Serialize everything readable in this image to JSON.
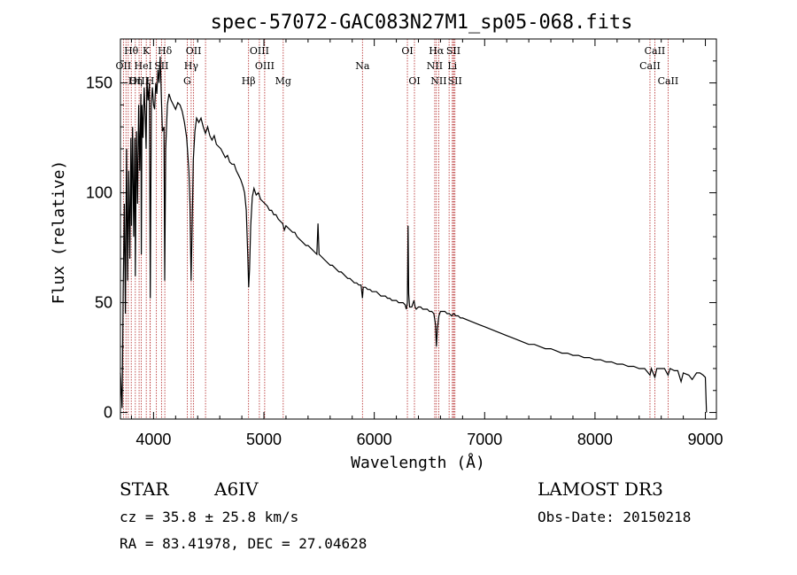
{
  "chart_data": {
    "type": "line",
    "title": "spec-57072-GAC083N27M1_sp05-068.fits",
    "xlabel": "Wavelength (Å)",
    "ylabel": "Flux (relative)",
    "xlim": [
      3700,
      9100
    ],
    "ylim": [
      -3,
      170
    ],
    "x_ticks": [
      4000,
      5000,
      6000,
      7000,
      8000,
      9000
    ],
    "y_ticks": [
      0,
      50,
      100,
      150
    ],
    "series": [
      {
        "name": "spectrum",
        "points": [
          [
            3700,
            18
          ],
          [
            3715,
            2
          ],
          [
            3725,
            55
          ],
          [
            3735,
            95
          ],
          [
            3745,
            45
          ],
          [
            3755,
            120
          ],
          [
            3765,
            60
          ],
          [
            3775,
            110
          ],
          [
            3785,
            70
          ],
          [
            3795,
            125
          ],
          [
            3800,
            85
          ],
          [
            3810,
            130
          ],
          [
            3820,
            80
          ],
          [
            3830,
            125
          ],
          [
            3835,
            62
          ],
          [
            3845,
            128
          ],
          [
            3855,
            95
          ],
          [
            3865,
            140
          ],
          [
            3875,
            110
          ],
          [
            3885,
            145
          ],
          [
            3889,
            72
          ],
          [
            3895,
            140
          ],
          [
            3905,
            125
          ],
          [
            3915,
            148
          ],
          [
            3925,
            135
          ],
          [
            3933,
            120
          ],
          [
            3940,
            152
          ],
          [
            3950,
            142
          ],
          [
            3962,
            150
          ],
          [
            3970,
            52
          ],
          [
            3980,
            140
          ],
          [
            3990,
            148
          ],
          [
            4000,
            140
          ],
          [
            4010,
            138
          ],
          [
            4020,
            150
          ],
          [
            4030,
            145
          ],
          [
            4040,
            156
          ],
          [
            4050,
            150
          ],
          [
            4060,
            162
          ],
          [
            4070,
            145
          ],
          [
            4080,
            128
          ],
          [
            4095,
            130
          ],
          [
            4101,
            60
          ],
          [
            4110,
            120
          ],
          [
            4125,
            140
          ],
          [
            4140,
            145
          ],
          [
            4160,
            142
          ],
          [
            4180,
            140
          ],
          [
            4200,
            138
          ],
          [
            4220,
            141
          ],
          [
            4240,
            140
          ],
          [
            4260,
            137
          ],
          [
            4280,
            132
          ],
          [
            4300,
            125
          ],
          [
            4320,
            110
          ],
          [
            4330,
            95
          ],
          [
            4340,
            60
          ],
          [
            4350,
            85
          ],
          [
            4360,
            115
          ],
          [
            4375,
            128
          ],
          [
            4390,
            134
          ],
          [
            4410,
            132
          ],
          [
            4430,
            134
          ],
          [
            4450,
            130
          ],
          [
            4470,
            127
          ],
          [
            4490,
            130
          ],
          [
            4510,
            126
          ],
          [
            4530,
            124
          ],
          [
            4550,
            126
          ],
          [
            4570,
            122
          ],
          [
            4590,
            121
          ],
          [
            4610,
            120
          ],
          [
            4630,
            118
          ],
          [
            4650,
            116
          ],
          [
            4670,
            117
          ],
          [
            4690,
            114
          ],
          [
            4710,
            113
          ],
          [
            4730,
            113
          ],
          [
            4750,
            110
          ],
          [
            4770,
            108
          ],
          [
            4790,
            106
          ],
          [
            4810,
            103
          ],
          [
            4825,
            100
          ],
          [
            4840,
            92
          ],
          [
            4855,
            70
          ],
          [
            4862,
            57
          ],
          [
            4870,
            65
          ],
          [
            4880,
            85
          ],
          [
            4895,
            98
          ],
          [
            4910,
            102
          ],
          [
            4930,
            99
          ],
          [
            4950,
            100
          ],
          [
            4970,
            97
          ],
          [
            4990,
            96
          ],
          [
            5010,
            95
          ],
          [
            5030,
            94
          ],
          [
            5050,
            92
          ],
          [
            5070,
            92
          ],
          [
            5090,
            90
          ],
          [
            5110,
            90
          ],
          [
            5130,
            88
          ],
          [
            5150,
            87
          ],
          [
            5170,
            86
          ],
          [
            5185,
            83
          ],
          [
            5200,
            85
          ],
          [
            5220,
            84
          ],
          [
            5240,
            83
          ],
          [
            5260,
            82
          ],
          [
            5280,
            82
          ],
          [
            5300,
            80
          ],
          [
            5320,
            79
          ],
          [
            5340,
            78
          ],
          [
            5360,
            77
          ],
          [
            5380,
            76
          ],
          [
            5400,
            76
          ],
          [
            5420,
            75
          ],
          [
            5440,
            74
          ],
          [
            5460,
            73
          ],
          [
            5480,
            72
          ],
          [
            5490,
            86
          ],
          [
            5500,
            72
          ],
          [
            5520,
            71
          ],
          [
            5540,
            70
          ],
          [
            5560,
            69
          ],
          [
            5580,
            68
          ],
          [
            5600,
            67
          ],
          [
            5620,
            67
          ],
          [
            5640,
            66
          ],
          [
            5660,
            65
          ],
          [
            5680,
            64
          ],
          [
            5700,
            64
          ],
          [
            5720,
            63
          ],
          [
            5740,
            62
          ],
          [
            5760,
            61
          ],
          [
            5780,
            61
          ],
          [
            5800,
            60
          ],
          [
            5820,
            59
          ],
          [
            5840,
            59
          ],
          [
            5860,
            58
          ],
          [
            5880,
            58
          ],
          [
            5893,
            52
          ],
          [
            5900,
            57
          ],
          [
            5920,
            57
          ],
          [
            5940,
            56
          ],
          [
            5960,
            56
          ],
          [
            5980,
            55
          ],
          [
            6000,
            55
          ],
          [
            6020,
            55
          ],
          [
            6040,
            54
          ],
          [
            6060,
            53
          ],
          [
            6080,
            53
          ],
          [
            6100,
            53
          ],
          [
            6120,
            52
          ],
          [
            6140,
            52
          ],
          [
            6160,
            51
          ],
          [
            6180,
            51
          ],
          [
            6200,
            51
          ],
          [
            6220,
            50
          ],
          [
            6240,
            50
          ],
          [
            6260,
            50
          ],
          [
            6280,
            49
          ],
          [
            6290,
            47
          ],
          [
            6300,
            50
          ],
          [
            6306,
            85
          ],
          [
            6312,
            54
          ],
          [
            6320,
            48
          ],
          [
            6340,
            48
          ],
          [
            6360,
            51
          ],
          [
            6370,
            48
          ],
          [
            6380,
            47
          ],
          [
            6400,
            48
          ],
          [
            6420,
            48
          ],
          [
            6440,
            47
          ],
          [
            6460,
            47
          ],
          [
            6480,
            47
          ],
          [
            6500,
            46
          ],
          [
            6520,
            46
          ],
          [
            6540,
            45
          ],
          [
            6555,
            40
          ],
          [
            6563,
            30
          ],
          [
            6572,
            38
          ],
          [
            6585,
            44
          ],
          [
            6600,
            46
          ],
          [
            6620,
            46
          ],
          [
            6640,
            46
          ],
          [
            6660,
            45
          ],
          [
            6680,
            45
          ],
          [
            6700,
            44
          ],
          [
            6720,
            45
          ],
          [
            6740,
            44
          ],
          [
            6760,
            44
          ],
          [
            6780,
            43
          ],
          [
            6800,
            43
          ],
          [
            6850,
            42
          ],
          [
            6900,
            41
          ],
          [
            6950,
            40
          ],
          [
            7000,
            39
          ],
          [
            7050,
            38
          ],
          [
            7100,
            37
          ],
          [
            7150,
            36
          ],
          [
            7200,
            35
          ],
          [
            7250,
            34
          ],
          [
            7300,
            33
          ],
          [
            7350,
            32
          ],
          [
            7400,
            31
          ],
          [
            7450,
            31
          ],
          [
            7500,
            30
          ],
          [
            7550,
            29
          ],
          [
            7600,
            29
          ],
          [
            7650,
            28
          ],
          [
            7700,
            27
          ],
          [
            7750,
            27
          ],
          [
            7800,
            26
          ],
          [
            7850,
            26
          ],
          [
            7900,
            25
          ],
          [
            7950,
            25
          ],
          [
            8000,
            24
          ],
          [
            8050,
            24
          ],
          [
            8100,
            23
          ],
          [
            8150,
            23
          ],
          [
            8200,
            22
          ],
          [
            8250,
            22
          ],
          [
            8300,
            21
          ],
          [
            8350,
            21
          ],
          [
            8400,
            20
          ],
          [
            8450,
            20
          ],
          [
            8498,
            17
          ],
          [
            8510,
            20
          ],
          [
            8542,
            16
          ],
          [
            8560,
            20
          ],
          [
            8600,
            20
          ],
          [
            8630,
            20
          ],
          [
            8662,
            17
          ],
          [
            8680,
            20
          ],
          [
            8720,
            19
          ],
          [
            8750,
            19
          ],
          [
            8780,
            14
          ],
          [
            8800,
            18
          ],
          [
            8850,
            17
          ],
          [
            8880,
            15
          ],
          [
            8920,
            18
          ],
          [
            8950,
            18
          ],
          [
            8980,
            17
          ],
          [
            9000,
            16
          ],
          [
            9010,
            0
          ]
        ]
      }
    ],
    "line_markers": [
      {
        "label": "Hθ",
        "wavelength": 3798,
        "row": 1
      },
      {
        "label": "OII",
        "wavelength": 3727,
        "row": 2
      },
      {
        "label": "OIII",
        "wavelength": 3869,
        "row": 3
      },
      {
        "label": "He",
        "wavelength": 3889,
        "row": 2
      },
      {
        "label": "Hη",
        "wavelength": 3835,
        "row": 3
      },
      {
        "label": "K",
        "wavelength": 3934,
        "row": 1
      },
      {
        "label": "I",
        "wavelength": 3970,
        "row": 2
      },
      {
        "label": "H",
        "wavelength": 3969,
        "row": 3
      },
      {
        "label": "Hδ",
        "wavelength": 4102,
        "row": 1
      },
      {
        "label": "SII",
        "wavelength": 4072,
        "row": 2
      },
      {
        "label": "OII",
        "wavelength": 4363,
        "row": 1
      },
      {
        "label": "Hγ",
        "wavelength": 4341,
        "row": 2
      },
      {
        "label": "G",
        "wavelength": 4305,
        "row": 3
      },
      {
        "label": "OIII",
        "wavelength": 4959,
        "row": 1
      },
      {
        "label": "OIII",
        "wavelength": 5007,
        "row": 2
      },
      {
        "label": "Hβ",
        "wavelength": 4861,
        "row": 3
      },
      {
        "label": "Mg",
        "wavelength": 5175,
        "row": 3
      },
      {
        "label": "Na",
        "wavelength": 5893,
        "row": 2
      },
      {
        "label": "OI",
        "wavelength": 6300,
        "row": 1
      },
      {
        "label": "OI",
        "wavelength": 6364,
        "row": 3
      },
      {
        "label": "Hα",
        "wavelength": 6563,
        "row": 1
      },
      {
        "label": "NII",
        "wavelength": 6548,
        "row": 2
      },
      {
        "label": "NII",
        "wavelength": 6584,
        "row": 3
      },
      {
        "label": "SII",
        "wavelength": 6717,
        "row": 1
      },
      {
        "label": "Li",
        "wavelength": 6707,
        "row": 2
      },
      {
        "label": "SII",
        "wavelength": 6731,
        "row": 3
      },
      {
        "label": "CaII",
        "wavelength": 8542,
        "row": 1
      },
      {
        "label": "CaII",
        "wavelength": 8498,
        "row": 2
      },
      {
        "label": "CaII",
        "wavelength": 8662,
        "row": 3
      }
    ],
    "extra_marker_wavelengths": [
      3750,
      3771,
      4026,
      4471,
      6678,
      6720
    ]
  },
  "info": {
    "object_class": "STAR",
    "subclass": "A6IV",
    "survey": "LAMOST DR3",
    "redshift": "cz = 35.8 ± 25.8 km/s",
    "obs_date": "Obs-Date: 20150218",
    "coords": "RA =  83.41978, DEC =  27.04628"
  },
  "colors": {
    "marker": "#b22222",
    "spectrum": "#000000",
    "axes": "#000000"
  }
}
